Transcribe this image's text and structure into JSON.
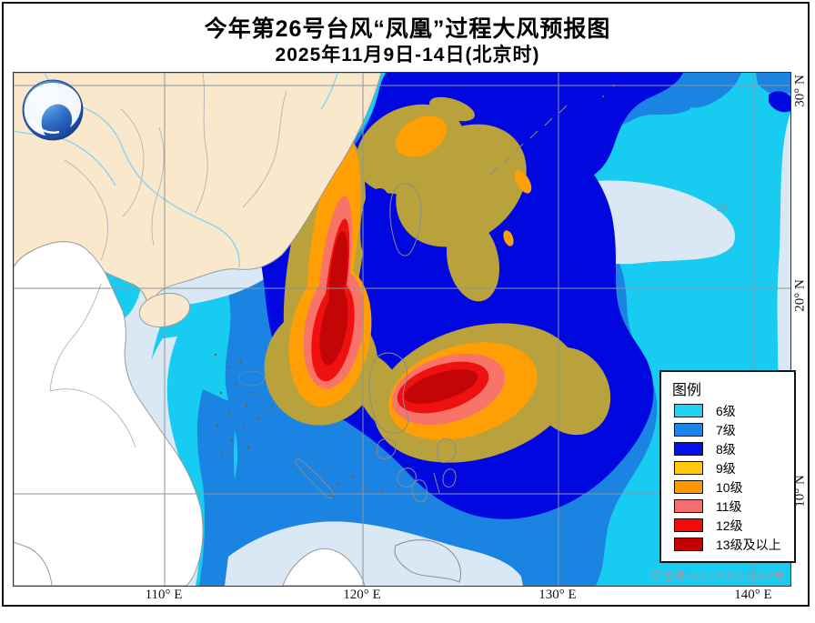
{
  "title": {
    "line1": "今年第26号台风“凤凰”过程大风预报图",
    "line2": "2025年11月9日-14日(北京时)"
  },
  "legend": {
    "title": "图例",
    "items": [
      {
        "label": "6级",
        "color": "#22D2F5"
      },
      {
        "label": "7级",
        "color": "#1C86E8"
      },
      {
        "label": "8级",
        "color": "#0510EC"
      },
      {
        "label": "9级",
        "color": "#FFC80A"
      },
      {
        "label": "10级",
        "color": "#FF9800"
      },
      {
        "label": "11级",
        "color": "#F56E6E"
      },
      {
        "label": "12级",
        "color": "#F50A0A"
      },
      {
        "label": "13级及以上",
        "color": "#C40000"
      }
    ]
  },
  "axes": {
    "x_labels": [
      "110° E",
      "120° E",
      "130° E",
      "140° E"
    ],
    "y_labels": [
      "30° N",
      "20° N",
      "10° N"
    ],
    "inner_label": "20"
  },
  "attribution": "审图号:GS (2019) 3082号",
  "palette": {
    "sea_calm": "#D9E8F4",
    "lv6": "#17CBF1",
    "lv7": "#1B84E3",
    "lv8": "#0008DF",
    "lv9": "#B9A23C",
    "lv10": "#FF9F04",
    "lv11": "#F97468",
    "lv12": "#EF1010",
    "lv13": "#C30505",
    "land_china": "#F9E8CB",
    "land_other": "#FFFFFF",
    "coast_border": "#9B9B9B",
    "river": "#86D2F2",
    "grid": "#8F949B",
    "island_outline": "#8A8A8A",
    "islet_dot": "#7A5C3A",
    "logo_dark": "#123A8F"
  }
}
